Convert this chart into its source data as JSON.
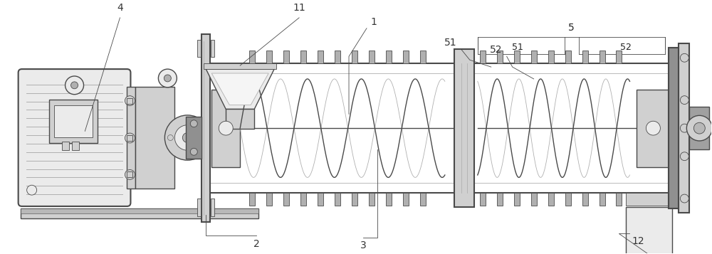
{
  "bg_color": "#ffffff",
  "line_color": "#4a4a4a",
  "light_gray": "#d8d8d8",
  "mid_gray": "#b0b0b0",
  "dark_gray": "#888888",
  "fill_light": "#ebebeb",
  "fill_mid": "#d0d0d0",
  "fill_dark": "#b8b8b8",
  "figsize": [
    10.0,
    3.57
  ],
  "dpi": 100
}
